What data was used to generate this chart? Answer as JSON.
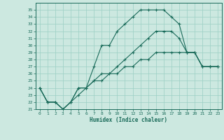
{
  "xlabel": "Humidex (Indice chaleur)",
  "x_hours": [
    0,
    1,
    2,
    3,
    4,
    5,
    6,
    7,
    8,
    9,
    10,
    11,
    12,
    13,
    14,
    15,
    16,
    17,
    18,
    19,
    20,
    21,
    22,
    23
  ],
  "line1": [
    24,
    22,
    22,
    21,
    22,
    24,
    24,
    27,
    30,
    30,
    32,
    33,
    34,
    35,
    35,
    35,
    35,
    34,
    33,
    29,
    29,
    27,
    27,
    27
  ],
  "line2": [
    24,
    22,
    22,
    21,
    22,
    24,
    24,
    25,
    26,
    26,
    27,
    28,
    29,
    30,
    31,
    32,
    32,
    32,
    31,
    29,
    29,
    27,
    27,
    27
  ],
  "line3": [
    24,
    22,
    22,
    21,
    22,
    23,
    24,
    25,
    25,
    26,
    26,
    27,
    27,
    28,
    28,
    29,
    29,
    29,
    29,
    29,
    29,
    27,
    27,
    27
  ],
  "bg_color": "#cce8e0",
  "line_color": "#1a6b5a",
  "grid_color": "#9acfc4",
  "xlim": [
    -0.5,
    23.5
  ],
  "ylim": [
    21,
    36
  ],
  "yticks": [
    21,
    22,
    23,
    24,
    25,
    26,
    27,
    28,
    29,
    30,
    31,
    32,
    33,
    34,
    35
  ],
  "xticks": [
    0,
    1,
    2,
    3,
    4,
    5,
    6,
    7,
    8,
    9,
    10,
    11,
    12,
    13,
    14,
    15,
    16,
    17,
    18,
    19,
    20,
    21,
    22,
    23
  ],
  "tick_fontsize": 4.5,
  "xlabel_fontsize": 5.5
}
